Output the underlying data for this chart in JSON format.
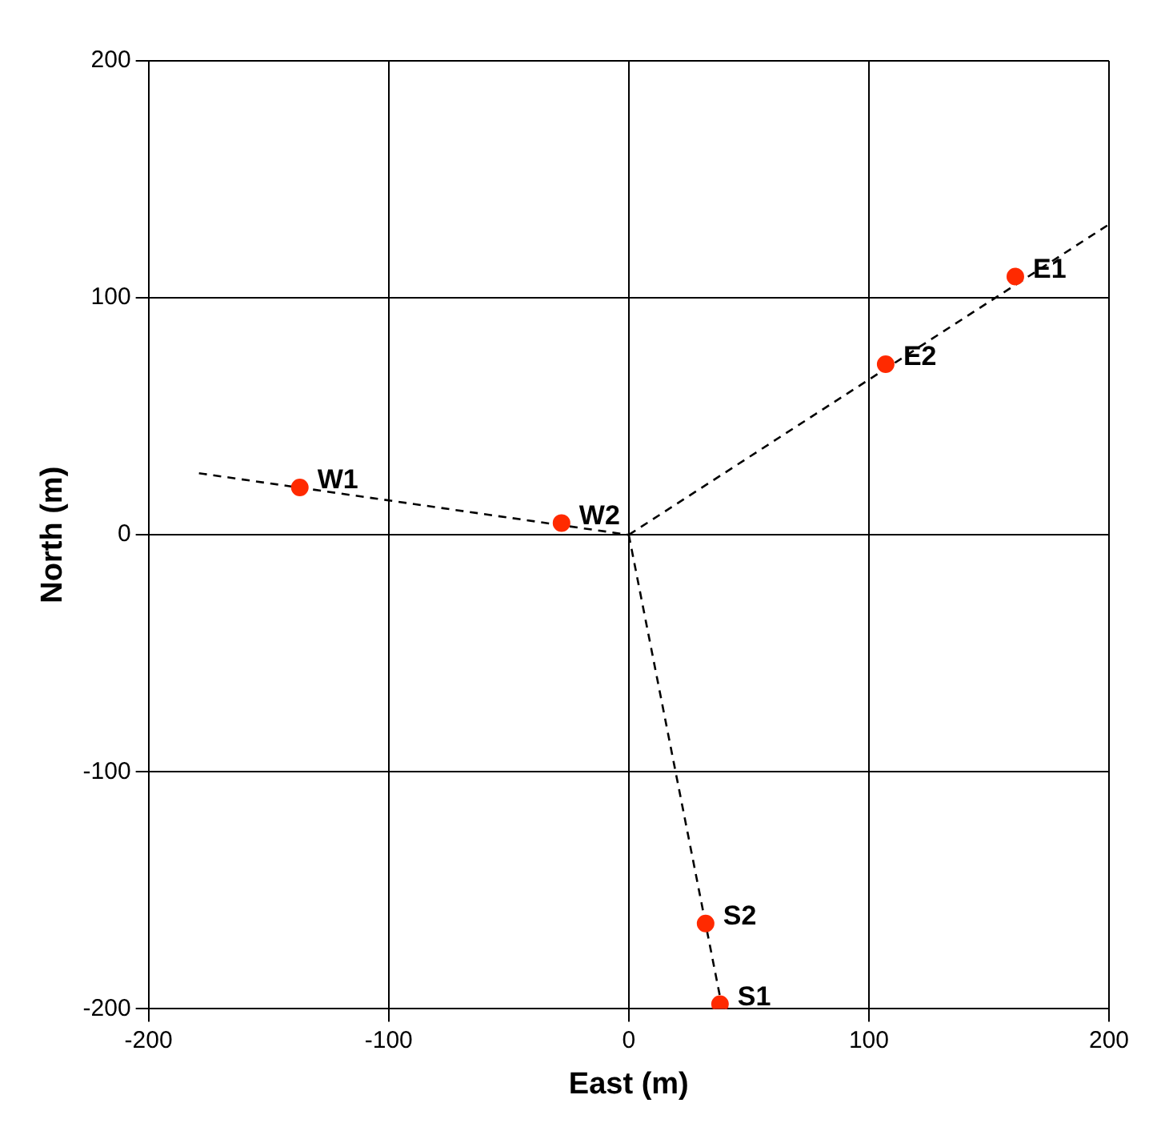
{
  "chart_data": {
    "type": "scatter",
    "xlabel": "East (m)",
    "ylabel": "North (m)",
    "xlim": [
      -200,
      200
    ],
    "ylim": [
      -200,
      200
    ],
    "xticks": [
      -200,
      -100,
      0,
      100,
      200
    ],
    "yticks": [
      -200,
      -100,
      0,
      100,
      200
    ],
    "grid": true,
    "legend": false,
    "series": [
      {
        "type": "scatter",
        "color": "#ff2a00",
        "marker": "circle",
        "x": [
          161,
          107,
          -137,
          -28,
          32,
          38
        ],
        "values": [
          109,
          72,
          20,
          5,
          -164,
          -198
        ]
      },
      {
        "type": "line",
        "color": "#000000",
        "marker": "none",
        "line_style": "dashed",
        "x": [
          0,
          200
        ],
        "values": [
          0,
          131
        ]
      },
      {
        "type": "line",
        "color": "#000000",
        "marker": "none",
        "line_style": "dashed",
        "x": [
          -179,
          0
        ],
        "values": [
          26,
          0
        ]
      },
      {
        "type": "line",
        "color": "#000000",
        "marker": "none",
        "line_style": "dashed",
        "x": [
          0,
          39
        ],
        "values": [
          0,
          -200
        ]
      }
    ],
    "annotations": [
      {
        "text": "E1",
        "x": 161,
        "y": 109
      },
      {
        "text": "E2",
        "x": 107,
        "y": 72
      },
      {
        "text": "W1",
        "x": -137,
        "y": 20
      },
      {
        "text": "W2",
        "x": -28,
        "y": 5
      },
      {
        "text": "S2",
        "x": 32,
        "y": -164
      },
      {
        "text": "S1",
        "x": 38,
        "y": -198
      }
    ]
  }
}
